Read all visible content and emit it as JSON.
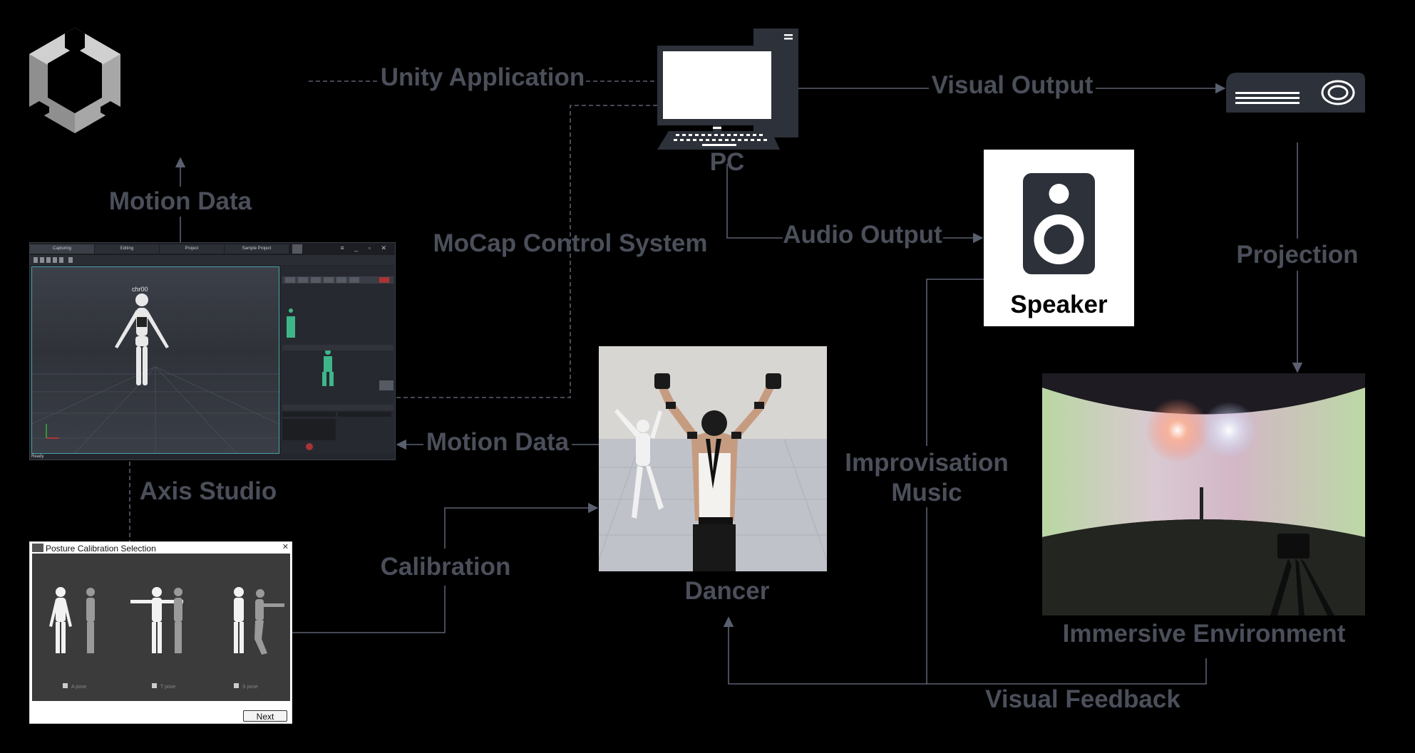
{
  "labels": {
    "unity_application": "Unity Application",
    "visual_output": "Visual Output",
    "pc": "PC",
    "motion_data_top": "Motion Data",
    "mocap_control_system": "MoCap Control System",
    "audio_output": "Audio Output",
    "projection": "Projection",
    "improvisation_line1": "Improvisation",
    "improvisation_line2": "Music",
    "motion_data_mid": "Motion Data",
    "axis_studio": "Axis Studio",
    "calibration": "Calibration",
    "dancer": "Dancer",
    "immersive_environment": "Immersive Environment",
    "visual_feedback": "Visual Feedback",
    "speaker": "Speaker"
  },
  "axis_window": {
    "tabs": [
      "Capturing",
      "Editing",
      "Project",
      "Sample Project"
    ],
    "character_name": "chr00",
    "status": "Ready"
  },
  "posture_window": {
    "title": "Posture Calibration Selection",
    "options": [
      "A pose",
      "T pose",
      "S pose"
    ],
    "next_label": "Next"
  },
  "colors": {
    "background": "#000000",
    "label_gray": "#4b4f5a",
    "line_gray": "#5b6070",
    "device_dark": "#2d3139"
  },
  "icons": [
    "unity-logo-icon",
    "pc-icon",
    "projector-icon",
    "speaker-icon"
  ]
}
